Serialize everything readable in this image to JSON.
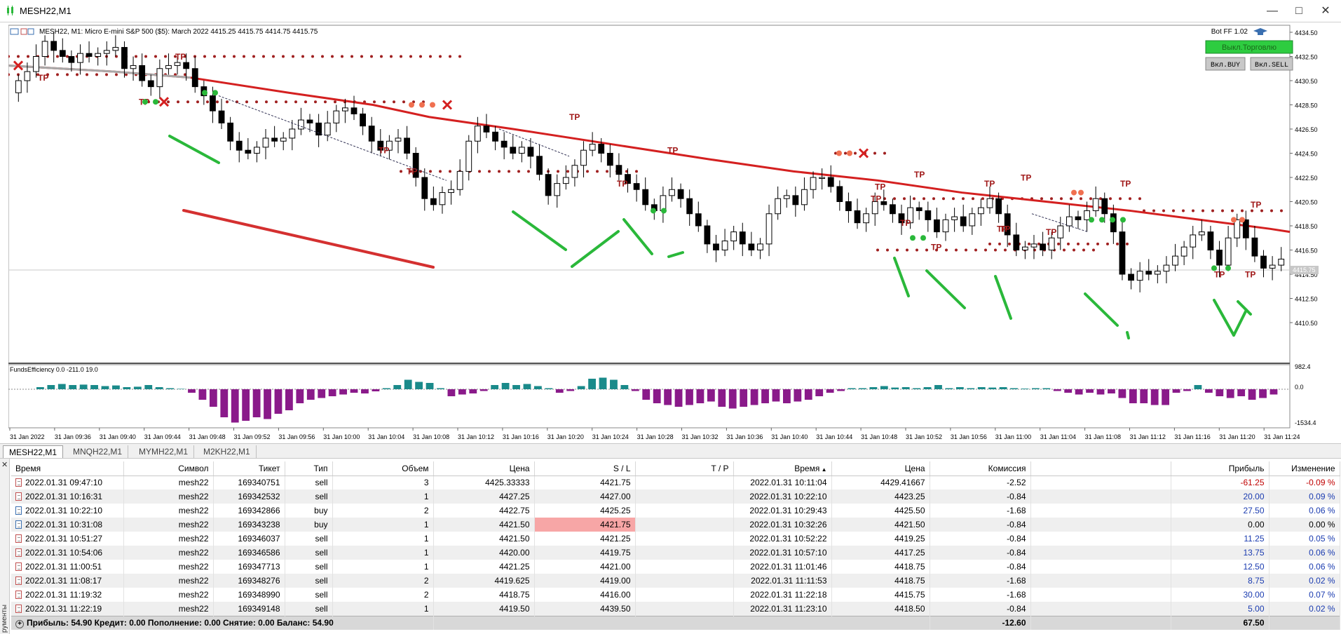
{
  "window": {
    "title": "MESH22,M1",
    "controls": [
      "minimize",
      "maximize",
      "close"
    ]
  },
  "chart": {
    "header_text": "MESH22, M1:  Micro E-mini S&P 500 ($5): March 2022  4415.25 4415.75 4414.75 4415.75",
    "bot_label": "Bot FF 1.02",
    "buttons": {
      "trade_off": "Выкл.Торговлю",
      "buy_on": "Вкл.BUY",
      "sell_on": "Вкл.SELL"
    },
    "price_axis": [
      "4434.50",
      "4432.50",
      "4430.50",
      "4428.50",
      "4426.50",
      "4424.50",
      "4422.50",
      "4420.50",
      "4418.50",
      "4416.50",
      "4414.50",
      "4412.50",
      "4410.50"
    ],
    "current_price": "4415.75",
    "indicator_label": "FundsEfficiency 0.0 -211.0 19.0",
    "indicator_axis": [
      "982.4",
      "0.0",
      "-1534.4"
    ],
    "time_axis": [
      "31 Jan 2022",
      "31 Jan 09:36",
      "31 Jan 09:40",
      "31 Jan 09:44",
      "31 Jan 09:48",
      "31 Jan 09:52",
      "31 Jan 09:56",
      "31 Jan 10:00",
      "31 Jan 10:04",
      "31 Jan 10:08",
      "31 Jan 10:12",
      "31 Jan 10:16",
      "31 Jan 10:20",
      "31 Jan 10:24",
      "31 Jan 10:28",
      "31 Jan 10:32",
      "31 Jan 10:36",
      "31 Jan 10:40",
      "31 Jan 10:44",
      "31 Jan 10:48",
      "31 Jan 10:52",
      "31 Jan 10:56",
      "31 Jan 11:00",
      "31 Jan 11:04",
      "31 Jan 11:08",
      "31 Jan 11:12",
      "31 Jan 11:16",
      "31 Jan 11:20",
      "31 Jan 11:24"
    ],
    "tp_label": "TP",
    "colors": {
      "ma_red": "#d42020",
      "ma_gray": "#a8a8a8",
      "bull_green": "#2ab83a",
      "bear_red": "#d43030",
      "hist_teal": "#1a8a8a",
      "hist_purple": "#8a1a8a",
      "trade_btn_green": "#2ecc40"
    }
  },
  "tabs": [
    "MESH22,M1",
    "MNQH22,M1",
    "MYMH22,M1",
    "M2KH22,M1"
  ],
  "terminal": {
    "side_label": "рументы",
    "columns": [
      "Время",
      "Символ",
      "Тикет",
      "Тип",
      "Объем",
      "Цена",
      "S / L",
      "T / P",
      "Время",
      "Цена",
      "Комиссия",
      "",
      "Прибыль",
      "Изменение"
    ],
    "rows": [
      [
        "2022.01.31 09:47:10",
        "mesh22",
        "169340751",
        "sell",
        "3",
        "4425.33333",
        "4421.75",
        "",
        "2022.01.31 10:11:04",
        "4429.41667",
        "-2.52",
        "",
        "-61.25",
        "-0.09 %"
      ],
      [
        "2022.01.31 10:16:31",
        "mesh22",
        "169342532",
        "sell",
        "1",
        "4427.25",
        "4427.00",
        "",
        "2022.01.31 10:22:10",
        "4423.25",
        "-0.84",
        "",
        "20.00",
        "0.09 %"
      ],
      [
        "2022.01.31 10:22:10",
        "mesh22",
        "169342866",
        "buy",
        "2",
        "4422.75",
        "4425.25",
        "",
        "2022.01.31 10:29:43",
        "4425.50",
        "-1.68",
        "",
        "27.50",
        "0.06 %"
      ],
      [
        "2022.01.31 10:31:08",
        "mesh22",
        "169343238",
        "buy",
        "1",
        "4421.50",
        "4421.75",
        "",
        "2022.01.31 10:32:26",
        "4421.50",
        "-0.84",
        "",
        "0.00",
        "0.00 %"
      ],
      [
        "2022.01.31 10:51:27",
        "mesh22",
        "169346037",
        "sell",
        "1",
        "4421.50",
        "4421.25",
        "",
        "2022.01.31 10:52:22",
        "4419.25",
        "-0.84",
        "",
        "11.25",
        "0.05 %"
      ],
      [
        "2022.01.31 10:54:06",
        "mesh22",
        "169346586",
        "sell",
        "1",
        "4420.00",
        "4419.75",
        "",
        "2022.01.31 10:57:10",
        "4417.25",
        "-0.84",
        "",
        "13.75",
        "0.06 %"
      ],
      [
        "2022.01.31 11:00:51",
        "mesh22",
        "169347713",
        "sell",
        "1",
        "4421.25",
        "4421.00",
        "",
        "2022.01.31 11:01:46",
        "4418.75",
        "-0.84",
        "",
        "12.50",
        "0.06 %"
      ],
      [
        "2022.01.31 11:08:17",
        "mesh22",
        "169348276",
        "sell",
        "2",
        "4419.625",
        "4419.00",
        "",
        "2022.01.31 11:11:53",
        "4418.75",
        "-1.68",
        "",
        "8.75",
        "0.02 %"
      ],
      [
        "2022.01.31 11:19:32",
        "mesh22",
        "169348990",
        "sell",
        "2",
        "4418.75",
        "4416.00",
        "",
        "2022.01.31 11:22:18",
        "4415.75",
        "-1.68",
        "",
        "30.00",
        "0.07 %"
      ],
      [
        "2022.01.31 11:22:19",
        "mesh22",
        "169349148",
        "sell",
        "1",
        "4419.50",
        "4439.50",
        "",
        "2022.01.31 11:23:10",
        "4418.50",
        "-0.84",
        "",
        "5.00",
        "0.02 %"
      ]
    ],
    "summary": {
      "text": "Прибыль: 54.90  Кредит: 0.00  Пополнение: 0.00  Снятие: 0.00  Баланс: 54.90",
      "commission": "-12.60",
      "profit": "67.50"
    }
  }
}
